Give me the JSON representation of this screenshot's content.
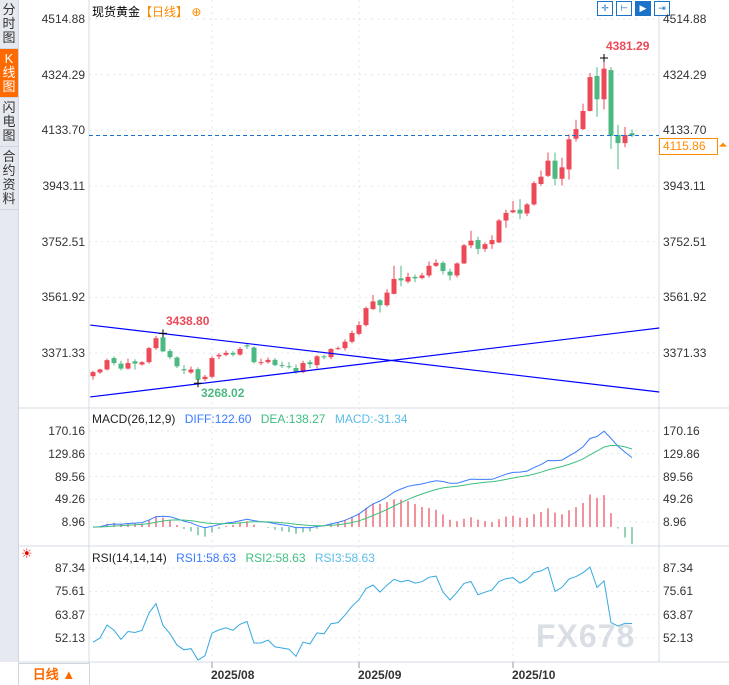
{
  "sidebar": {
    "items": [
      {
        "label": "分时图",
        "active": false
      },
      {
        "label": "K线图",
        "active": true
      },
      {
        "label": "闪电图",
        "active": false
      },
      {
        "label": "合约资料",
        "active": false
      }
    ]
  },
  "header": {
    "title": "现货黄金",
    "period": "【日线】",
    "period_icon": "crosshair-plus-icon"
  },
  "toolbar": {
    "icons": [
      "crosshair-icon",
      "range-icon",
      "play-icon",
      "go-latest-icon"
    ]
  },
  "colors": {
    "up": "#ec4a58",
    "down": "#4cb882",
    "diff": "#3a7bff",
    "dea": "#3fbf7f",
    "rsi": "#35a8e0",
    "trend": "#0000ff",
    "accent": "#ff6a00"
  },
  "current_price": "4115.86",
  "period_button": {
    "label": "日线",
    "icon": "▲"
  },
  "watermark": "FX678",
  "macd_legend": {
    "name": "MACD(26,12,9)",
    "diff": "DIFF:122.60",
    "dea": "DEA:138.27",
    "macd": "MACD:-31.34"
  },
  "rsi_legend": {
    "name": "RSI(14,14,14)",
    "rsi1": "RSI1:58.63",
    "rsi2": "RSI2:58.63",
    "rsi3": "RSI3:58.63",
    "icon": "settings-sun-icon"
  },
  "chart_data": {
    "type": "candlestick",
    "price_ticks": [
      "4514.88",
      "4324.29",
      "4133.70",
      "3943.11",
      "3752.51",
      "3561.92",
      "3371.33"
    ],
    "macd_ticks": [
      "170.16",
      "129.86",
      "89.56",
      "49.26",
      "8.96"
    ],
    "rsi_ticks": [
      "87.34",
      "75.61",
      "63.87",
      "52.13"
    ],
    "x_ticks": [
      {
        "label": "2025/08",
        "index": 17
      },
      {
        "label": "2025/09",
        "index": 38
      },
      {
        "label": "2025/10",
        "index": 60
      }
    ],
    "annotations": [
      {
        "label": "4381.29",
        "kind": "high",
        "index": 73
      },
      {
        "label": "3438.80",
        "kind": "high",
        "index": 10
      },
      {
        "label": "3268.02",
        "kind": "low",
        "index": 15
      }
    ],
    "trend_lines": [
      {
        "from": {
          "index": -0.4,
          "price": 3467
        },
        "to": {
          "index": 80.9,
          "price": 3238
        }
      },
      {
        "from": {
          "index": -0.4,
          "price": 3221
        },
        "to": {
          "index": 80.9,
          "price": 3457
        }
      }
    ],
    "ohlc": [
      [
        3292,
        3310,
        3280,
        3306
      ],
      [
        3305,
        3318,
        3300,
        3315
      ],
      [
        3315,
        3352,
        3312,
        3347
      ],
      [
        3354,
        3360,
        3330,
        3337
      ],
      [
        3335,
        3345,
        3312,
        3318
      ],
      [
        3318,
        3352,
        3315,
        3337
      ],
      [
        3343,
        3350,
        3315,
        3335
      ],
      [
        3332,
        3343,
        3328,
        3340
      ],
      [
        3340,
        3392,
        3335,
        3388
      ],
      [
        3388,
        3430,
        3382,
        3422
      ],
      [
        3425,
        3438.8,
        3375,
        3377
      ],
      [
        3378,
        3385,
        3350,
        3357
      ],
      [
        3356,
        3360,
        3320,
        3326
      ],
      [
        3316,
        3330,
        3300,
        3312
      ],
      [
        3305,
        3325,
        3300,
        3315
      ],
      [
        3316,
        3322,
        3268.02,
        3280
      ],
      [
        3282,
        3296,
        3275,
        3290
      ],
      [
        3290,
        3360,
        3286,
        3354
      ],
      [
        3360,
        3372,
        3350,
        3365
      ],
      [
        3365,
        3380,
        3360,
        3372
      ],
      [
        3372,
        3378,
        3360,
        3366
      ],
      [
        3366,
        3392,
        3362,
        3385
      ],
      [
        3398,
        3404,
        3385,
        3394
      ],
      [
        3390,
        3394,
        3335,
        3340
      ],
      [
        3337,
        3352,
        3330,
        3340
      ],
      [
        3340,
        3356,
        3335,
        3348
      ],
      [
        3348,
        3354,
        3326,
        3330
      ],
      [
        3330,
        3342,
        3320,
        3327
      ],
      [
        3326,
        3340,
        3318,
        3324
      ],
      [
        3320,
        3332,
        3300,
        3306
      ],
      [
        3306,
        3345,
        3302,
        3337
      ],
      [
        3340,
        3348,
        3320,
        3333
      ],
      [
        3330,
        3364,
        3318,
        3360
      ],
      [
        3360,
        3365,
        3350,
        3358
      ],
      [
        3357,
        3388,
        3350,
        3385
      ],
      [
        3385,
        3394,
        3382,
        3388
      ],
      [
        3388,
        3418,
        3380,
        3410
      ],
      [
        3410,
        3448,
        3405,
        3440
      ],
      [
        3437,
        3480,
        3432,
        3467
      ],
      [
        3467,
        3530,
        3462,
        3525
      ],
      [
        3522,
        3570,
        3518,
        3548
      ],
      [
        3552,
        3556,
        3510,
        3535
      ],
      [
        3535,
        3590,
        3530,
        3578
      ],
      [
        3574,
        3670,
        3572,
        3625
      ],
      [
        3627,
        3670,
        3600,
        3620
      ],
      [
        3616,
        3646,
        3610,
        3632
      ],
      [
        3632,
        3640,
        3614,
        3627
      ],
      [
        3628,
        3646,
        3624,
        3637
      ],
      [
        3637,
        3685,
        3630,
        3670
      ],
      [
        3670,
        3692,
        3666,
        3680
      ],
      [
        3680,
        3686,
        3640,
        3652
      ],
      [
        3650,
        3660,
        3620,
        3637
      ],
      [
        3637,
        3682,
        3630,
        3678
      ],
      [
        3678,
        3745,
        3676,
        3740
      ],
      [
        3740,
        3790,
        3730,
        3756
      ],
      [
        3758,
        3770,
        3710,
        3728
      ],
      [
        3728,
        3750,
        3718,
        3744
      ],
      [
        3744,
        3774,
        3728,
        3758
      ],
      [
        3750,
        3830,
        3748,
        3825
      ],
      [
        3825,
        3862,
        3800,
        3851
      ],
      [
        3853,
        3892,
        3850,
        3860
      ],
      [
        3862,
        3898,
        3830,
        3849
      ],
      [
        3849,
        3885,
        3840,
        3880
      ],
      [
        3880,
        3960,
        3876,
        3953
      ],
      [
        3950,
        3996,
        3944,
        3975
      ],
      [
        3978,
        4058,
        3974,
        4030
      ],
      [
        4030,
        4058,
        3945,
        3968
      ],
      [
        3968,
        4040,
        3945,
        4007
      ],
      [
        4000,
        4120,
        3965,
        4103
      ],
      [
        4105,
        4170,
        4095,
        4138
      ],
      [
        4138,
        4225,
        4135,
        4200
      ],
      [
        4200,
        4330,
        4198,
        4316
      ],
      [
        4320,
        4350,
        4180,
        4240
      ],
      [
        4240,
        4381.29,
        4205,
        4345
      ],
      [
        4340,
        4350,
        4070,
        4115
      ],
      [
        4118,
        4152,
        4000,
        4090
      ],
      [
        4090,
        4145,
        4076,
        4118
      ],
      [
        4124,
        4137,
        4110,
        4115.86
      ]
    ]
  }
}
